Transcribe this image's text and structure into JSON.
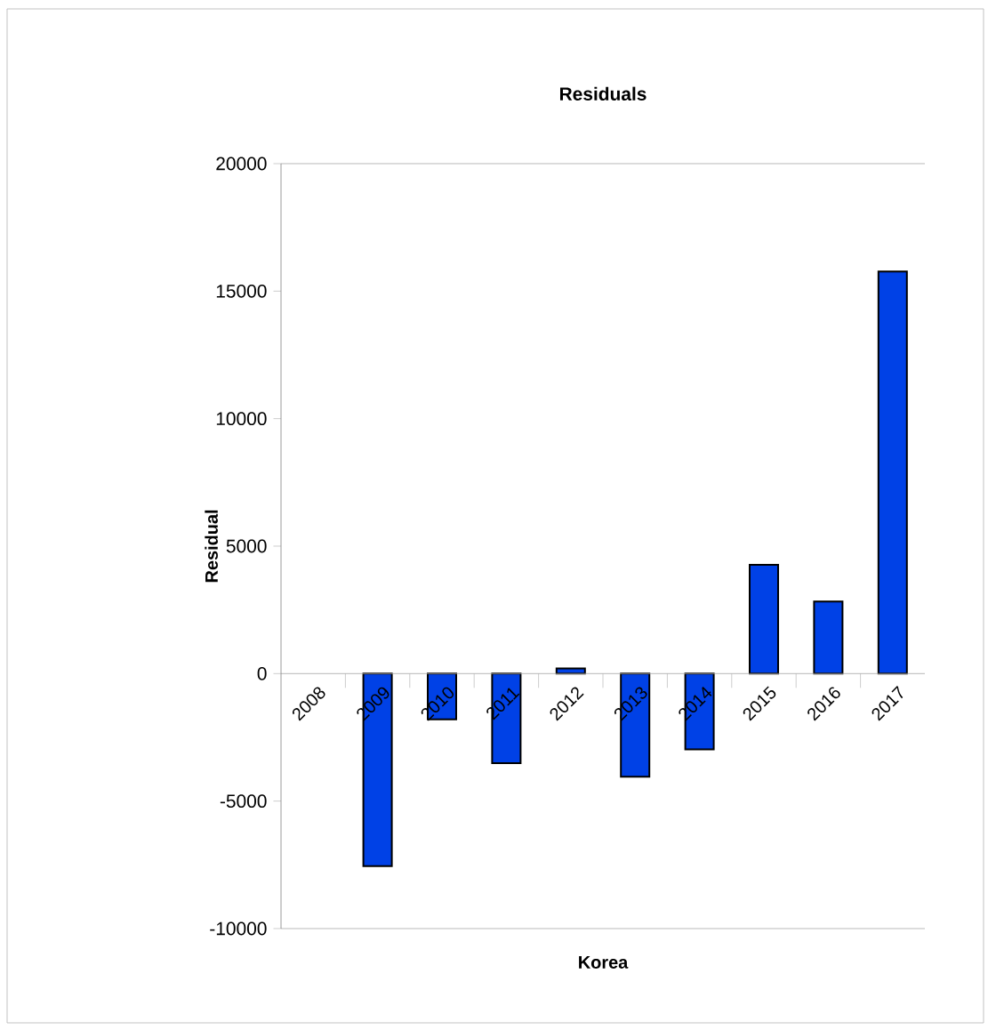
{
  "chart_data": {
    "type": "bar",
    "title": "Residuals",
    "xlabel": "Korea",
    "ylabel": "Residual",
    "categories": [
      "2008",
      "2009",
      "2010",
      "2011",
      "2012",
      "2013",
      "2014",
      "2015",
      "2016",
      "2017"
    ],
    "values": [
      null,
      -7550,
      -1790,
      -3510,
      200,
      -4040,
      -2970,
      4270,
      2830,
      15770
    ],
    "color": "#0041e6",
    "ylim": [
      -10000,
      20000
    ],
    "yticks": [
      -10000,
      -5000,
      0,
      5000,
      10000,
      15000,
      20000
    ],
    "grid": false
  }
}
